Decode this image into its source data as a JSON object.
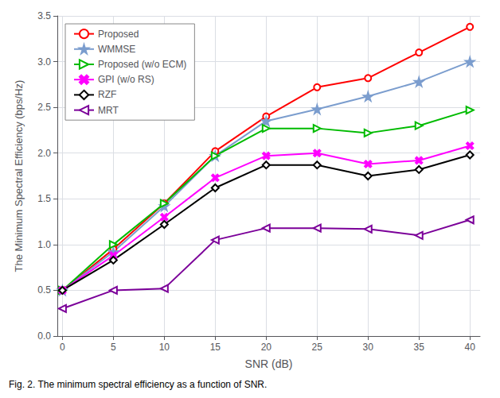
{
  "chart_data": {
    "type": "line",
    "caption": "Fig. 2. The minimum spectral efficiency as a function of SNR.",
    "xlabel": "SNR (dB)",
    "ylabel": "The Minimum Spectral Efficiency (bps/Hz)",
    "x": [
      0,
      5,
      10,
      15,
      20,
      25,
      30,
      35,
      40
    ],
    "series": [
      {
        "name": "Proposed",
        "color": "#ff0000",
        "marker": "circle",
        "values": [
          0.5,
          0.95,
          1.45,
          2.02,
          2.4,
          2.72,
          2.82,
          3.1,
          3.38
        ]
      },
      {
        "name": "WMMSE",
        "color": "#7b9dce",
        "marker": "star",
        "values": [
          0.5,
          0.92,
          1.42,
          1.97,
          2.35,
          2.48,
          2.62,
          2.78,
          3.0
        ]
      },
      {
        "name": "Proposed (w/o ECM)",
        "color": "#00bb00",
        "marker": "triangle-right",
        "values": [
          0.5,
          1.0,
          1.45,
          1.97,
          2.27,
          2.27,
          2.22,
          2.3,
          2.47
        ]
      },
      {
        "name": "GPI (w/o RS)",
        "color": "#ff00ff",
        "marker": "x",
        "values": [
          0.5,
          0.88,
          1.3,
          1.73,
          1.97,
          2.0,
          1.88,
          1.92,
          2.08
        ]
      },
      {
        "name": "RZF",
        "color": "#000000",
        "marker": "diamond",
        "values": [
          0.5,
          0.83,
          1.22,
          1.62,
          1.87,
          1.87,
          1.75,
          1.82,
          1.98
        ]
      },
      {
        "name": "MRT",
        "color": "#7b0099",
        "marker": "triangle-left",
        "values": [
          0.3,
          0.5,
          0.52,
          1.05,
          1.18,
          1.18,
          1.17,
          1.1,
          1.27
        ]
      }
    ],
    "xlim": [
      -0.5,
      41
    ],
    "ylim": [
      0,
      3.5
    ],
    "xticks": [
      0,
      5,
      10,
      15,
      20,
      25,
      30,
      35,
      40
    ],
    "yticks": [
      {
        "value": 0,
        "label": "0.0"
      },
      0.5,
      {
        "value": 1.0,
        "label": "1.0"
      },
      1.5,
      {
        "value": 2.0,
        "label": "2.0"
      },
      2.5,
      {
        "value": 3.0,
        "label": "3.0"
      },
      3.5
    ],
    "grid": true,
    "legend": "upper left"
  }
}
